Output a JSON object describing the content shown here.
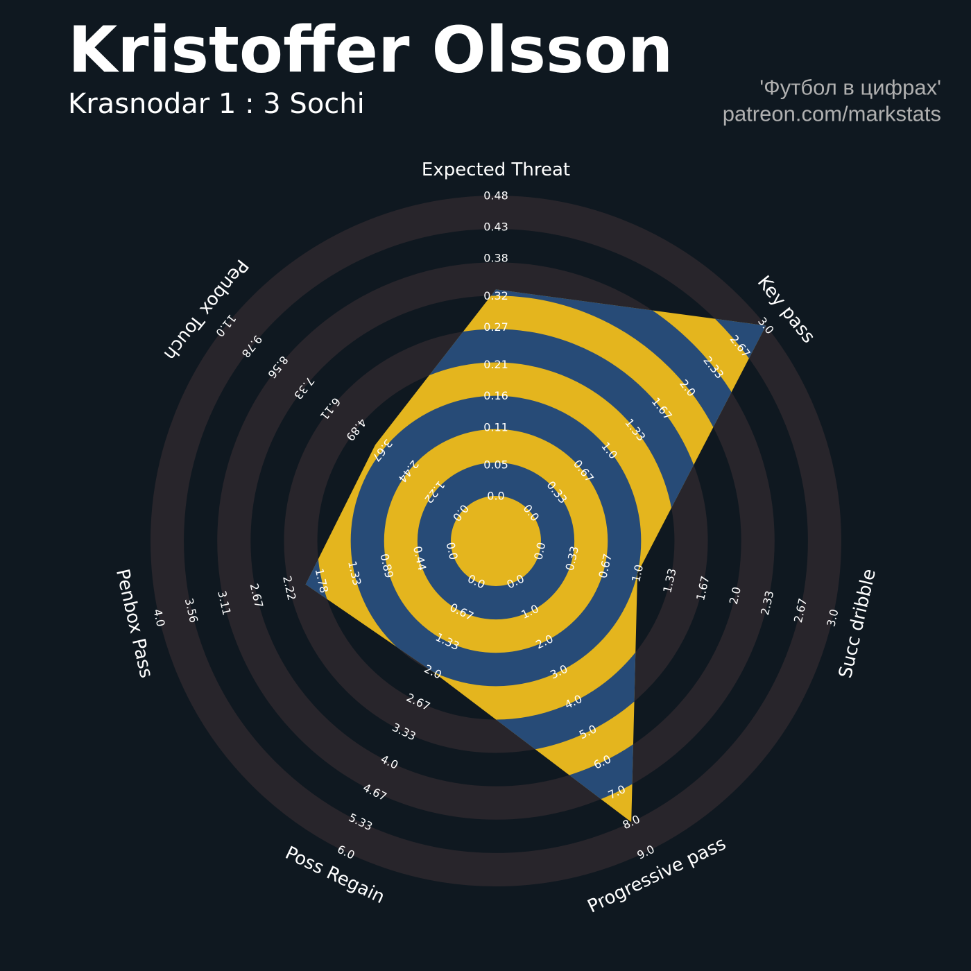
{
  "chart_data": {
    "type": "radar",
    "title": "Kristoffer Olsson",
    "subtitle": "Krasnodar 1 : 3 Sochi",
    "credits": [
      "'Футбол в цифрах'",
      "patreon.com/markstats"
    ],
    "axes": [
      {
        "name": "Expected Threat",
        "lim": [
          0,
          0.48
        ],
        "ticks": [
          {
            "value": 0,
            "label": "0.0"
          },
          0.05,
          0.11,
          0.16,
          0.21,
          0.27,
          0.32,
          0.38,
          0.43,
          0.48
        ]
      },
      {
        "name": "Key pass",
        "lim": [
          0,
          3
        ],
        "ticks": [
          {
            "value": 0,
            "label": "0.0"
          },
          0.33,
          0.67,
          {
            "value": 1,
            "label": "1.0"
          },
          1.33,
          1.67,
          {
            "value": 2,
            "label": "2.0"
          },
          2.33,
          2.67,
          {
            "value": 3,
            "label": "3.0"
          }
        ]
      },
      {
        "name": "Succ dribble",
        "lim": [
          0,
          3
        ],
        "ticks": [
          {
            "value": 0,
            "label": "0.0"
          },
          0.33,
          0.67,
          {
            "value": 1,
            "label": "1.0"
          },
          1.33,
          1.67,
          {
            "value": 2,
            "label": "2.0"
          },
          2.33,
          2.67,
          {
            "value": 3,
            "label": "3.0"
          }
        ]
      },
      {
        "name": "Progressive pass",
        "lim": [
          0,
          9
        ],
        "ticks": [
          {
            "value": 0,
            "label": "0.0"
          },
          {
            "value": 1,
            "label": "1.0"
          },
          {
            "value": 2,
            "label": "2.0"
          },
          {
            "value": 3,
            "label": "3.0"
          },
          {
            "value": 4,
            "label": "4.0"
          },
          {
            "value": 5,
            "label": "5.0"
          },
          {
            "value": 6,
            "label": "6.0"
          },
          {
            "value": 7,
            "label": "7.0"
          },
          {
            "value": 8,
            "label": "8.0"
          },
          {
            "value": 9,
            "label": "9.0"
          }
        ]
      },
      {
        "name": "Poss Regain",
        "lim": [
          0,
          6
        ],
        "ticks": [
          {
            "value": 0,
            "label": "0.0"
          },
          0.67,
          1.33,
          {
            "value": 2,
            "label": "2.0"
          },
          2.67,
          3.33,
          {
            "value": 4,
            "label": "4.0"
          },
          4.67,
          5.33,
          {
            "value": 6,
            "label": "6.0"
          }
        ]
      },
      {
        "name": "Penbox Pass",
        "lim": [
          0,
          4
        ],
        "ticks": [
          {
            "value": 0,
            "label": "0.0"
          },
          0.44,
          0.89,
          1.33,
          1.78,
          2.22,
          2.67,
          3.11,
          3.56,
          {
            "value": 4,
            "label": "4.0"
          }
        ]
      },
      {
        "name": "Penbox Touch",
        "lim": [
          0,
          11
        ],
        "ticks": [
          {
            "value": 0,
            "label": "0.0"
          },
          1.22,
          2.44,
          3.67,
          4.89,
          6.11,
          7.33,
          8.56,
          9.78,
          {
            "value": 11,
            "label": "11.0"
          }
        ]
      }
    ],
    "values": [
      0.33,
      3.0,
      1.0,
      8.0,
      2.0,
      2.0,
      4.0
    ],
    "color": "#e4b51e",
    "ring_color": "#274b77",
    "grid_color": "#28252b"
  }
}
